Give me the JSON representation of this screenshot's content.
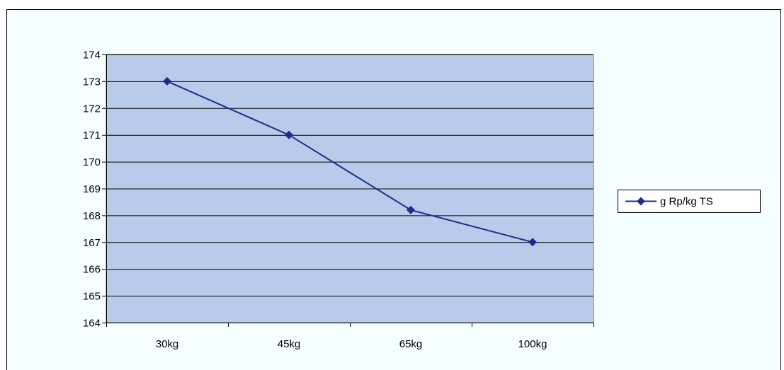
{
  "chart_data": {
    "type": "line",
    "categories": [
      "30kg",
      "45kg",
      "65kg",
      "100kg"
    ],
    "series": [
      {
        "name": "g Rp/kg TS",
        "values": [
          173,
          171,
          168.2,
          167
        ],
        "color": "#1a2d8a"
      }
    ],
    "ylim": [
      164,
      174
    ],
    "yticks": [
      164,
      165,
      166,
      167,
      168,
      169,
      170,
      171,
      172,
      173,
      174
    ],
    "grid": true,
    "legend": "right",
    "plot_background": "#b8cbea",
    "chart_background": "#f5ffff"
  }
}
